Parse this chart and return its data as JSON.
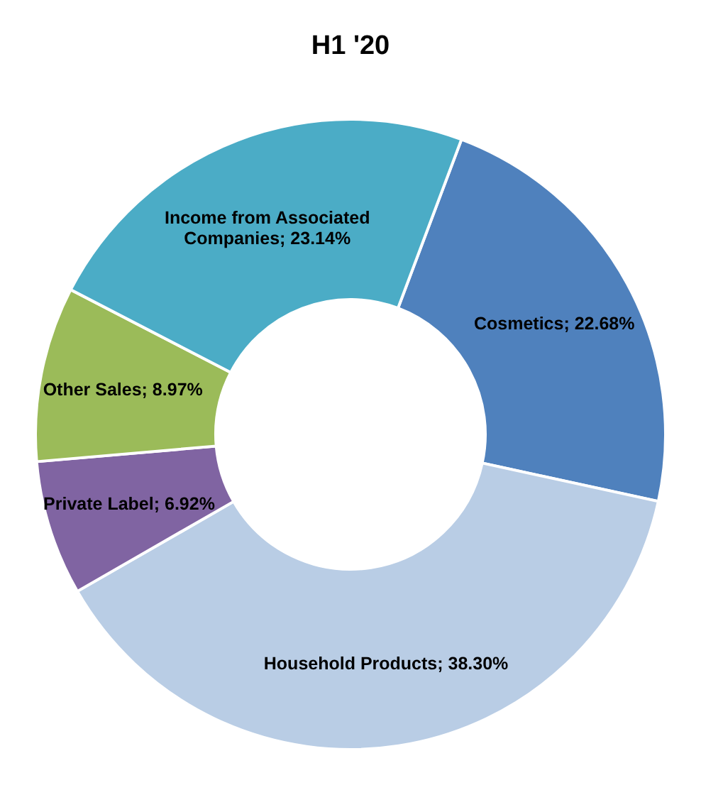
{
  "chart_data": {
    "type": "donut",
    "title": "H1 '20",
    "categories": [
      "Cosmetics",
      "Household Products",
      "Private Label",
      "Other Sales",
      "Income from Associated Companies"
    ],
    "values": [
      22.68,
      38.3,
      6.92,
      8.97,
      23.14
    ],
    "value_labels": [
      "22.68%",
      "38.30%",
      "6.92%",
      "8.97%",
      "23.14%"
    ],
    "colors": [
      "#4f81bd",
      "#b9cde5",
      "#8064a2",
      "#9bbb59",
      "#4bacc6"
    ]
  }
}
